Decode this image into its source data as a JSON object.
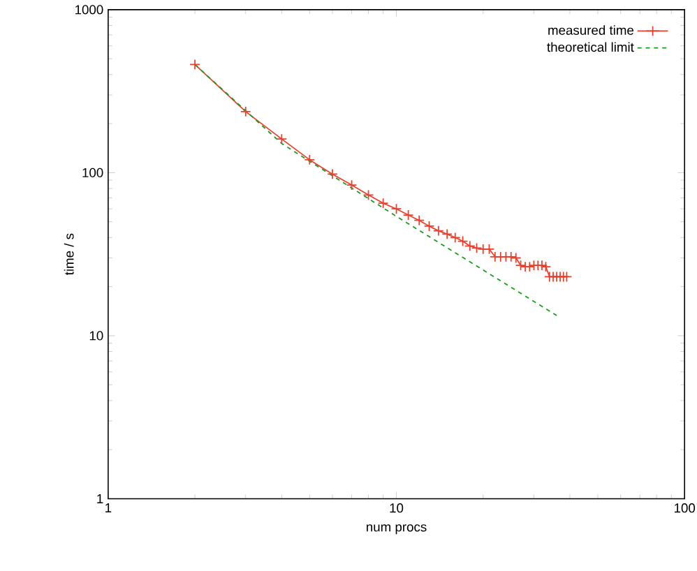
{
  "chart_data": {
    "type": "line",
    "xlabel": "num procs",
    "ylabel": "time / s",
    "log": "xy",
    "xlim": [
      1,
      100
    ],
    "ylim": [
      1,
      1000
    ],
    "xticks": [
      1,
      10,
      100
    ],
    "yticks": [
      1,
      10,
      100,
      1000
    ],
    "legend": "top right",
    "grid": false,
    "series": [
      {
        "name": "measured time",
        "color": "#e8402e",
        "marker": "cross",
        "line_style": "solid",
        "x": [
          2,
          3,
          4,
          5,
          6,
          7,
          8,
          9,
          10,
          11,
          12,
          13,
          14,
          15,
          16,
          17,
          18,
          19,
          20,
          21,
          22,
          23,
          24,
          25,
          26,
          27,
          28,
          29,
          30,
          31,
          32,
          33,
          34,
          35,
          36,
          37,
          38,
          39
        ],
        "values": [
          461,
          237,
          161,
          120,
          98,
          84,
          73,
          65,
          60,
          55,
          51,
          47,
          44,
          42,
          40,
          38,
          35.5,
          34.5,
          34,
          34,
          30.5,
          30.5,
          30.5,
          30.5,
          30,
          27,
          26.5,
          26.5,
          27,
          27,
          27,
          26.5,
          23,
          23,
          23,
          23,
          23,
          23
        ]
      },
      {
        "name": "theoretical limit",
        "color": "#1a9a1a",
        "marker": "none",
        "line_style": "dashed",
        "x": [
          2,
          4,
          10,
          36
        ],
        "values": [
          461,
          151,
          54,
          13.3
        ]
      }
    ]
  }
}
